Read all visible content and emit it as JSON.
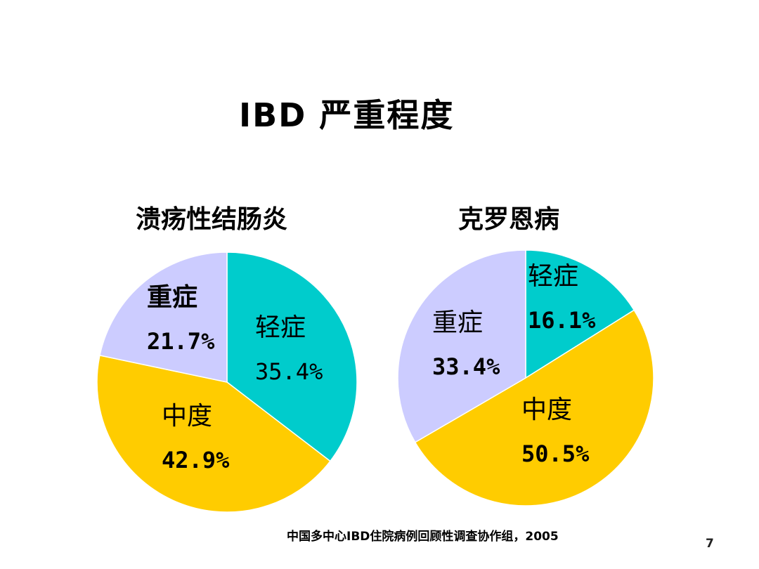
{
  "slide": {
    "title": "IBD 严重程度",
    "source": "中国多中心IBD住院病例回顾性调查协作组，2005",
    "page_number": "7"
  },
  "colors": {
    "mild": "#00CCCC",
    "moderate": "#FFCC00",
    "severe": "#CCCCFF",
    "slice_border": "#FFFFFF"
  },
  "charts": [
    {
      "title": "溃疡性结肠炎",
      "slices": [
        {
          "name": "轻症",
          "pct_label": "35.4%",
          "value": 35.4
        },
        {
          "name": "中度",
          "pct_label": "42.9%",
          "value": 42.9
        },
        {
          "name": "重症",
          "pct_label": "21.7%",
          "value": 21.7
        }
      ]
    },
    {
      "title": "克罗恩病",
      "slices": [
        {
          "name": "轻症",
          "pct_label": "16.1%",
          "value": 16.1
        },
        {
          "name": "中度",
          "pct_label": "50.5%",
          "value": 50.5
        },
        {
          "name": "重症",
          "pct_label": "33.4%",
          "value": 33.4
        }
      ]
    }
  ],
  "chart_data": [
    {
      "type": "pie",
      "title": "溃疡性结肠炎",
      "categories": [
        "轻症",
        "中度",
        "重症"
      ],
      "values": [
        35.4,
        42.9,
        21.7
      ],
      "colors": [
        "#00CCCC",
        "#FFCC00",
        "#CCCCFF"
      ],
      "start_angle": "12 o'clock, clockwise",
      "legend": "none (labels inside slices)"
    },
    {
      "type": "pie",
      "title": "克罗恩病",
      "categories": [
        "轻症",
        "中度",
        "重症"
      ],
      "values": [
        16.1,
        50.5,
        33.4
      ],
      "colors": [
        "#00CCCC",
        "#FFCC00",
        "#CCCCFF"
      ],
      "start_angle": "12 o'clock, clockwise",
      "legend": "none (labels inside slices)"
    }
  ]
}
